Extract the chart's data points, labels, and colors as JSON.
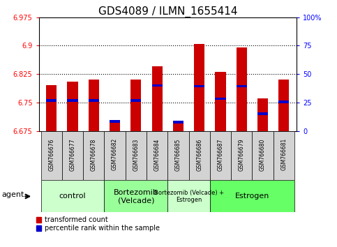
{
  "title": "GDS4089 / ILMN_1655414",
  "samples": [
    "GSM766676",
    "GSM766677",
    "GSM766678",
    "GSM766682",
    "GSM766683",
    "GSM766684",
    "GSM766685",
    "GSM766686",
    "GSM766687",
    "GSM766679",
    "GSM766680",
    "GSM766681"
  ],
  "red_values": [
    6.795,
    6.805,
    6.81,
    6.7,
    6.81,
    6.845,
    6.695,
    6.905,
    6.83,
    6.895,
    6.76,
    6.81
  ],
  "blue_values": [
    6.755,
    6.755,
    6.755,
    6.7,
    6.755,
    6.795,
    6.698,
    6.793,
    6.76,
    6.793,
    6.72,
    6.752
  ],
  "ymin": 6.675,
  "ymax": 6.975,
  "yticks_left": [
    6.675,
    6.75,
    6.825,
    6.9,
    6.975
  ],
  "yticks_right_vals": [
    0,
    25,
    50,
    75,
    100
  ],
  "yticks_right_labels": [
    "0",
    "25",
    "50",
    "75",
    "100%"
  ],
  "groups": [
    {
      "label": "control",
      "start": 0,
      "end": 3,
      "color": "#ccffcc",
      "fontsize": 8
    },
    {
      "label": "Bortezomib\n(Velcade)",
      "start": 3,
      "end": 6,
      "color": "#99ff99",
      "fontsize": 8
    },
    {
      "label": "Bortezomib (Velcade) +\nEstrogen",
      "start": 6,
      "end": 8,
      "color": "#ccffcc",
      "fontsize": 6
    },
    {
      "label": "Estrogen",
      "start": 8,
      "end": 12,
      "color": "#66ff66",
      "fontsize": 8
    }
  ],
  "agent_label": "agent",
  "legend_red": "transformed count",
  "legend_blue": "percentile rank within the sample",
  "bar_width": 0.5,
  "bar_color": "#cc0000",
  "blue_color": "#0000cc",
  "title_fontsize": 11,
  "tick_fontsize": 7,
  "sample_fontsize": 5.5
}
